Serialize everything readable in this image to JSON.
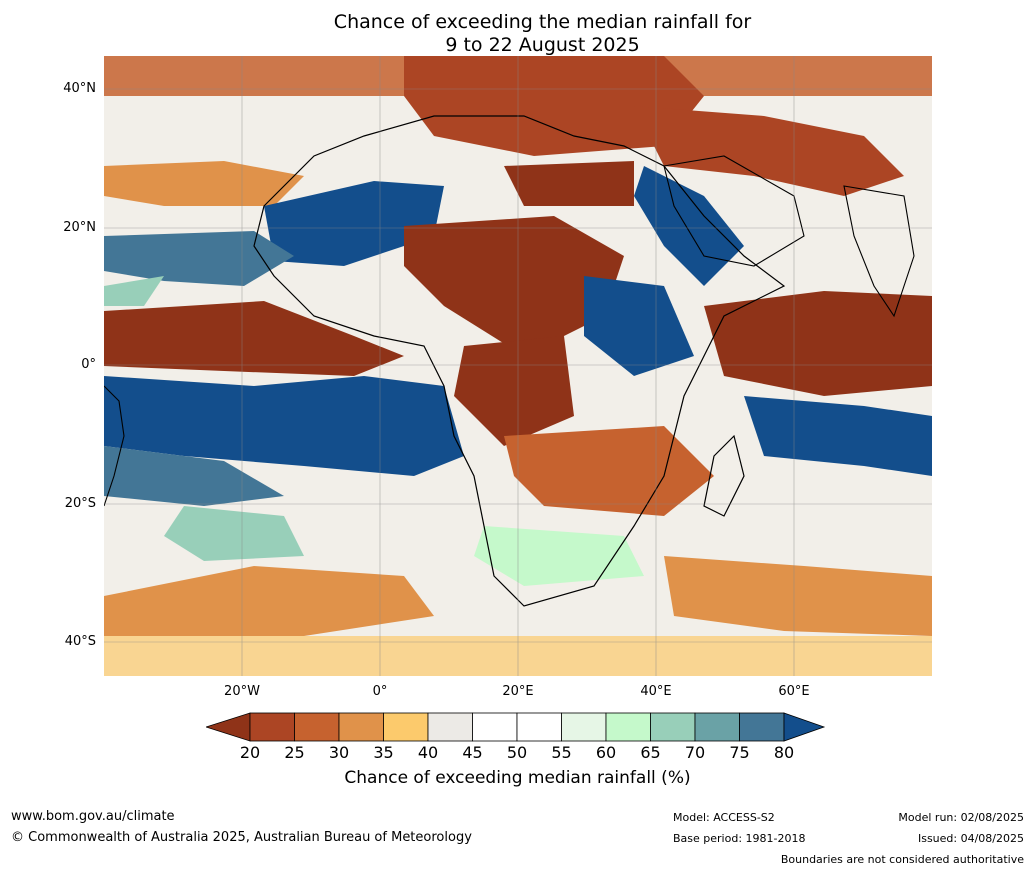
{
  "title": {
    "line1": "Chance of exceeding the median rainfall for",
    "line2": "9 to 22 August 2025"
  },
  "axes": {
    "lat_labels": [
      "40°N",
      "20°N",
      "0°",
      "20°S",
      "40°S"
    ],
    "lon_labels": [
      "20°W",
      "0°",
      "20°E",
      "40°E",
      "60°E"
    ]
  },
  "colorbar": {
    "ticks": [
      "20",
      "25",
      "30",
      "35",
      "40",
      "45",
      "50",
      "55",
      "60",
      "65",
      "70",
      "75",
      "80"
    ],
    "label": "Chance of exceeding median rainfall (%)",
    "colors": [
      "#8f3318",
      "#ac4524",
      "#c6622f",
      "#e0924a",
      "#fcca6c",
      "#eceae6",
      "#ffffff",
      "#ffffff",
      "#e6f6e6",
      "#c5f9cb",
      "#98cfb9",
      "#6aa2a6",
      "#437696",
      "#134e8c"
    ]
  },
  "footer": {
    "url": "www.bom.gov.au/climate",
    "copyright": "© Commonwealth of Australia 2025, Australian Bureau of Meteorology",
    "model": "Model: ACCESS-S2",
    "base_period": "Base period: 1981-2018",
    "model_run": "Model run: 02/08/2025",
    "issued": "Issued: 04/08/2025",
    "disclaimer": "Boundaries are not considered authoritative"
  }
}
